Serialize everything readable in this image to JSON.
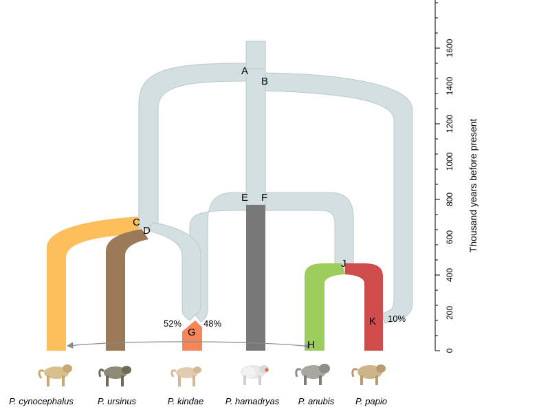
{
  "axis": {
    "title": "Thousand years before present",
    "ticks": [
      "0",
      "200",
      "400",
      "600",
      "800",
      "1000",
      "1200",
      "1400",
      "1600"
    ]
  },
  "nodes": [
    "A",
    "B",
    "C",
    "D",
    "E",
    "F",
    "G",
    "H",
    "J",
    "K"
  ],
  "admixture": {
    "left_pct": "52%",
    "right_pct": "48%",
    "papio_pct": "10%"
  },
  "species": [
    {
      "name": "P. cynocephalus",
      "color": "#fcbf5b"
    },
    {
      "name": "P. ursinus",
      "color": "#9b7a5a"
    },
    {
      "name": "P. kindae",
      "color": "#f5865a"
    },
    {
      "name": "P. hamadryas",
      "color": "#787878"
    },
    {
      "name": "P. anubis",
      "color": "#9ccc5c"
    },
    {
      "name": "P. papio",
      "color": "#cf4c4c"
    }
  ],
  "colors": {
    "ancestral": "#d3dfe1",
    "ancestral_edge": "#b9c9cc",
    "arrow": "#8a8a8a"
  }
}
